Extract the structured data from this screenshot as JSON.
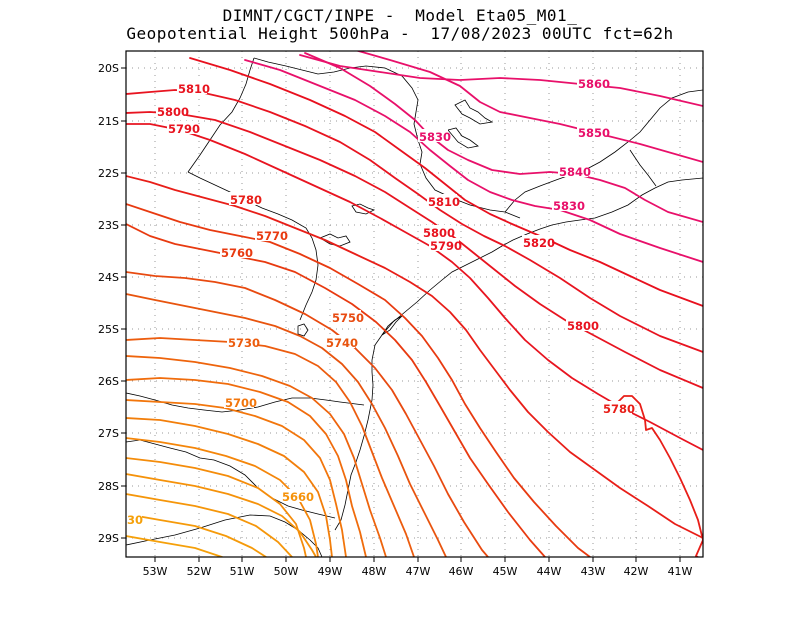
{
  "header": {
    "line1": "DIMNT/CGCT/INPE -  Model Eta05_M01_",
    "line2": "Geopotential Height 500hPa -  17/08/2023 00UTC fct=62h"
  },
  "axes": {
    "lat_ticks": [
      "20S",
      "21S",
      "22S",
      "23S",
      "24S",
      "25S",
      "26S",
      "27S",
      "28S",
      "29S"
    ],
    "lon_ticks": [
      "53W",
      "52W",
      "51W",
      "50W",
      "49W",
      "48W",
      "47W",
      "46W",
      "45W",
      "44W",
      "43W",
      "42W",
      "41W"
    ]
  },
  "contour_labels": [
    "5860",
    "5850",
    "5840",
    "5830",
    "5820",
    "5810",
    "5800",
    "5790",
    "5780",
    "5770",
    "5760",
    "5750",
    "5740",
    "5730",
    "5700",
    "5660",
    "30"
  ],
  "colors": {
    "deep_pink": "#e8106a",
    "red": "#e81420",
    "red_orange": "#e83a10",
    "orange": "#f26a0a",
    "light_orange": "#f5960a",
    "coastline": "#000000",
    "grid": "#9a9a9a"
  }
}
